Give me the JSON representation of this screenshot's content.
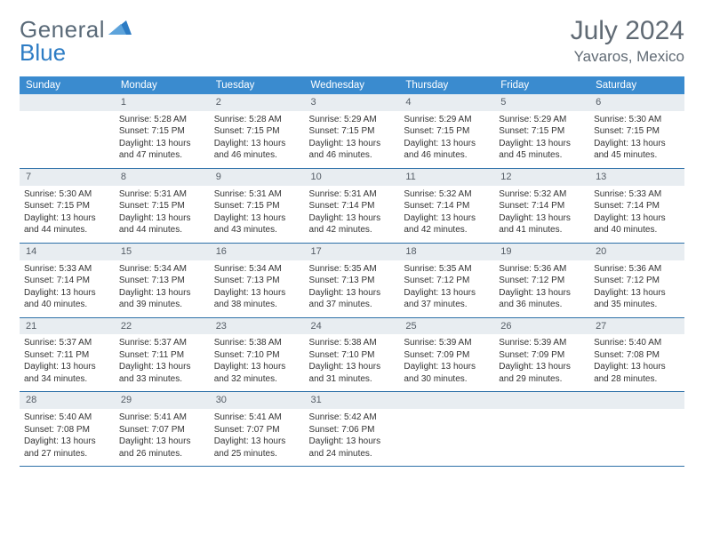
{
  "brand": {
    "name1": "General",
    "name2": "Blue"
  },
  "title": "July 2024",
  "location": "Yavaros, Mexico",
  "colors": {
    "header_bg": "#3a8bcf",
    "header_fg": "#ffffff",
    "daynum_bg": "#e8edf1",
    "daynum_fg": "#555d66",
    "rule": "#2d70a8",
    "logo_gray": "#5a6a78",
    "logo_blue": "#2d7cc4",
    "title_color": "#606a74",
    "text": "#333333",
    "bg": "#ffffff"
  },
  "typography": {
    "title_fontsize": 30,
    "location_fontsize": 17,
    "weekday_fontsize": 11.5,
    "body_fontsize": 10
  },
  "weekdays": [
    "Sunday",
    "Monday",
    "Tuesday",
    "Wednesday",
    "Thursday",
    "Friday",
    "Saturday"
  ],
  "start_offset": 1,
  "days": [
    {
      "n": 1,
      "sunrise": "5:28 AM",
      "sunset": "7:15 PM",
      "daylight": "13 hours and 47 minutes."
    },
    {
      "n": 2,
      "sunrise": "5:28 AM",
      "sunset": "7:15 PM",
      "daylight": "13 hours and 46 minutes."
    },
    {
      "n": 3,
      "sunrise": "5:29 AM",
      "sunset": "7:15 PM",
      "daylight": "13 hours and 46 minutes."
    },
    {
      "n": 4,
      "sunrise": "5:29 AM",
      "sunset": "7:15 PM",
      "daylight": "13 hours and 46 minutes."
    },
    {
      "n": 5,
      "sunrise": "5:29 AM",
      "sunset": "7:15 PM",
      "daylight": "13 hours and 45 minutes."
    },
    {
      "n": 6,
      "sunrise": "5:30 AM",
      "sunset": "7:15 PM",
      "daylight": "13 hours and 45 minutes."
    },
    {
      "n": 7,
      "sunrise": "5:30 AM",
      "sunset": "7:15 PM",
      "daylight": "13 hours and 44 minutes."
    },
    {
      "n": 8,
      "sunrise": "5:31 AM",
      "sunset": "7:15 PM",
      "daylight": "13 hours and 44 minutes."
    },
    {
      "n": 9,
      "sunrise": "5:31 AM",
      "sunset": "7:15 PM",
      "daylight": "13 hours and 43 minutes."
    },
    {
      "n": 10,
      "sunrise": "5:31 AM",
      "sunset": "7:14 PM",
      "daylight": "13 hours and 42 minutes."
    },
    {
      "n": 11,
      "sunrise": "5:32 AM",
      "sunset": "7:14 PM",
      "daylight": "13 hours and 42 minutes."
    },
    {
      "n": 12,
      "sunrise": "5:32 AM",
      "sunset": "7:14 PM",
      "daylight": "13 hours and 41 minutes."
    },
    {
      "n": 13,
      "sunrise": "5:33 AM",
      "sunset": "7:14 PM",
      "daylight": "13 hours and 40 minutes."
    },
    {
      "n": 14,
      "sunrise": "5:33 AM",
      "sunset": "7:14 PM",
      "daylight": "13 hours and 40 minutes."
    },
    {
      "n": 15,
      "sunrise": "5:34 AM",
      "sunset": "7:13 PM",
      "daylight": "13 hours and 39 minutes."
    },
    {
      "n": 16,
      "sunrise": "5:34 AM",
      "sunset": "7:13 PM",
      "daylight": "13 hours and 38 minutes."
    },
    {
      "n": 17,
      "sunrise": "5:35 AM",
      "sunset": "7:13 PM",
      "daylight": "13 hours and 37 minutes."
    },
    {
      "n": 18,
      "sunrise": "5:35 AM",
      "sunset": "7:12 PM",
      "daylight": "13 hours and 37 minutes."
    },
    {
      "n": 19,
      "sunrise": "5:36 AM",
      "sunset": "7:12 PM",
      "daylight": "13 hours and 36 minutes."
    },
    {
      "n": 20,
      "sunrise": "5:36 AM",
      "sunset": "7:12 PM",
      "daylight": "13 hours and 35 minutes."
    },
    {
      "n": 21,
      "sunrise": "5:37 AM",
      "sunset": "7:11 PM",
      "daylight": "13 hours and 34 minutes."
    },
    {
      "n": 22,
      "sunrise": "5:37 AM",
      "sunset": "7:11 PM",
      "daylight": "13 hours and 33 minutes."
    },
    {
      "n": 23,
      "sunrise": "5:38 AM",
      "sunset": "7:10 PM",
      "daylight": "13 hours and 32 minutes."
    },
    {
      "n": 24,
      "sunrise": "5:38 AM",
      "sunset": "7:10 PM",
      "daylight": "13 hours and 31 minutes."
    },
    {
      "n": 25,
      "sunrise": "5:39 AM",
      "sunset": "7:09 PM",
      "daylight": "13 hours and 30 minutes."
    },
    {
      "n": 26,
      "sunrise": "5:39 AM",
      "sunset": "7:09 PM",
      "daylight": "13 hours and 29 minutes."
    },
    {
      "n": 27,
      "sunrise": "5:40 AM",
      "sunset": "7:08 PM",
      "daylight": "13 hours and 28 minutes."
    },
    {
      "n": 28,
      "sunrise": "5:40 AM",
      "sunset": "7:08 PM",
      "daylight": "13 hours and 27 minutes."
    },
    {
      "n": 29,
      "sunrise": "5:41 AM",
      "sunset": "7:07 PM",
      "daylight": "13 hours and 26 minutes."
    },
    {
      "n": 30,
      "sunrise": "5:41 AM",
      "sunset": "7:07 PM",
      "daylight": "13 hours and 25 minutes."
    },
    {
      "n": 31,
      "sunrise": "5:42 AM",
      "sunset": "7:06 PM",
      "daylight": "13 hours and 24 minutes."
    }
  ],
  "labels": {
    "sunrise": "Sunrise: ",
    "sunset": "Sunset: ",
    "daylight": "Daylight: "
  }
}
